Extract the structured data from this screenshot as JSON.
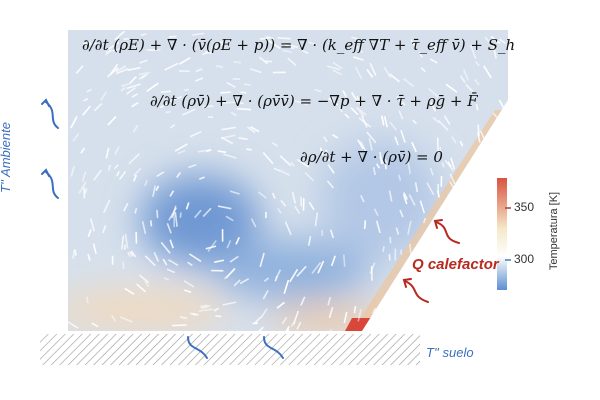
{
  "equations": {
    "energy": "∂/∂t (ρE) + ∇ · (v̄(ρE + p)) = ∇ · (k_eff ∇T + τ̄_eff v̄) + S_h",
    "momentum": "∂/∂t (ρv̄) + ∇ · (ρv̄v̄) = −∇p + ∇ · τ̄ + ρḡ + F̄",
    "continuity": "∂ρ/∂t + ∇ · (ρv̄) = 0"
  },
  "labels": {
    "ambient": "T'' Ambiente",
    "heater": "Q calefactor",
    "floor": "T'' suelo"
  },
  "colorbar": {
    "title": "Temperatura [K]",
    "ticks": [
      "350",
      "300"
    ],
    "colors": [
      "#d9533f",
      "#f5e7c8",
      "#ffffff",
      "#5b8fd0"
    ]
  },
  "colors": {
    "cold": "#8fb1dd",
    "warm": "#f2cfa8",
    "hot": "#d9463a",
    "ambient_arrow": "#3d6fc0",
    "heater_arrow": "#b8291f"
  }
}
